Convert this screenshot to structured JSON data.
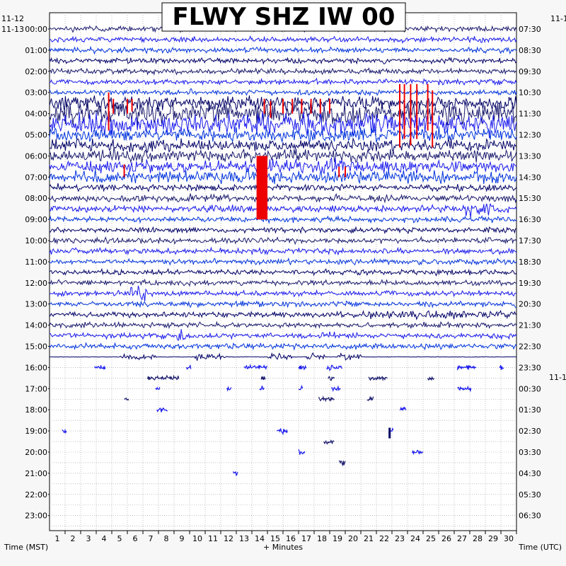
{
  "chart_data": {
    "type": "helicorder",
    "title": "FLWY SHZ IW 00",
    "xlabel": "+ Minutes",
    "left_axis_label": "Time (MST)",
    "right_axis_label": "Time (UTC)",
    "left_date_top": "11-12",
    "left_date_second": "11-13",
    "right_date_top": "11-1",
    "right_date_mid": "11-1",
    "x_ticks": [
      "1",
      "2",
      "3",
      "4",
      "5",
      "6",
      "7",
      "8",
      "9",
      "10",
      "11",
      "12",
      "13",
      "14",
      "15",
      "16",
      "17",
      "18",
      "19",
      "20",
      "21",
      "22",
      "23",
      "24",
      "25",
      "26",
      "27",
      "28",
      "29",
      "30"
    ],
    "xlim": [
      0,
      30
    ],
    "left_hour_labels": [
      "00:00",
      "01:00",
      "02:00",
      "03:00",
      "04:00",
      "05:00",
      "06:00",
      "07:00",
      "08:00",
      "09:00",
      "10:00",
      "11:00",
      "12:00",
      "13:00",
      "14:00",
      "15:00",
      "16:00",
      "17:00",
      "18:00",
      "19:00",
      "20:00",
      "21:00",
      "22:00",
      "23:00"
    ],
    "right_hour_labels": [
      "07:30",
      "08:30",
      "09:30",
      "10:30",
      "11:30",
      "12:30",
      "13:30",
      "14:30",
      "15:30",
      "16:30",
      "17:30",
      "18:30",
      "19:30",
      "20:30",
      "21:30",
      "22:30",
      "23:30",
      "00:30",
      "01:30",
      "02:30",
      "03:30",
      "04:30",
      "05:30",
      "06:30"
    ],
    "trace_colors": [
      "#1a1a6e",
      "#1a1aee",
      "#0033dd",
      "#000066"
    ],
    "clip_color": "#ee0000",
    "grid": true,
    "events": [
      {
        "row_hour": 16.0,
        "minute": 2.9,
        "dur": 0.7
      },
      {
        "row_hour": 16.0,
        "minute": 8.8,
        "dur": 0.3
      },
      {
        "row_hour": 16.0,
        "minute": 12.5,
        "dur": 1.5
      },
      {
        "row_hour": 16.0,
        "minute": 16.0,
        "dur": 0.5
      },
      {
        "row_hour": 16.0,
        "minute": 17.8,
        "dur": 1.0
      },
      {
        "row_hour": 16.0,
        "minute": 26.2,
        "dur": 1.2
      },
      {
        "row_hour": 16.0,
        "minute": 28.9,
        "dur": 0.3
      },
      {
        "row_hour": 16.5,
        "minute": 6.3,
        "dur": 2.0
      },
      {
        "row_hour": 16.5,
        "minute": 13.6,
        "dur": 0.3
      },
      {
        "row_hour": 16.5,
        "minute": 17.9,
        "dur": 0.4
      },
      {
        "row_hour": 16.5,
        "minute": 20.5,
        "dur": 1.2
      },
      {
        "row_hour": 16.5,
        "minute": 24.3,
        "dur": 0.4
      },
      {
        "row_hour": 17.0,
        "minute": 6.8,
        "dur": 0.3
      },
      {
        "row_hour": 17.0,
        "minute": 11.4,
        "dur": 0.3
      },
      {
        "row_hour": 17.0,
        "minute": 13.5,
        "dur": 0.3
      },
      {
        "row_hour": 17.0,
        "minute": 16.0,
        "dur": 0.3
      },
      {
        "row_hour": 17.0,
        "minute": 18.1,
        "dur": 0.6
      },
      {
        "row_hour": 17.0,
        "minute": 26.2,
        "dur": 0.9
      },
      {
        "row_hour": 17.5,
        "minute": 4.8,
        "dur": 0.3
      },
      {
        "row_hour": 17.5,
        "minute": 17.3,
        "dur": 1.0
      },
      {
        "row_hour": 17.5,
        "minute": 20.4,
        "dur": 0.4
      },
      {
        "row_hour": 18.0,
        "minute": 6.9,
        "dur": 0.7
      },
      {
        "row_hour": 18.0,
        "minute": 22.5,
        "dur": 0.4
      },
      {
        "row_hour": 19.0,
        "minute": 0.8,
        "dur": 0.3
      },
      {
        "row_hour": 19.0,
        "minute": 14.6,
        "dur": 0.7
      },
      {
        "row_hour": 19.0,
        "minute": 21.8,
        "dur": 0.3
      },
      {
        "row_hour": 19.5,
        "minute": 17.6,
        "dur": 0.7
      },
      {
        "row_hour": 20.0,
        "minute": 16.0,
        "dur": 0.4
      },
      {
        "row_hour": 20.0,
        "minute": 23.3,
        "dur": 0.7
      },
      {
        "row_hour": 20.5,
        "minute": 18.6,
        "dur": 0.4
      },
      {
        "row_hour": 21.0,
        "minute": 11.8,
        "dur": 0.3
      }
    ]
  }
}
